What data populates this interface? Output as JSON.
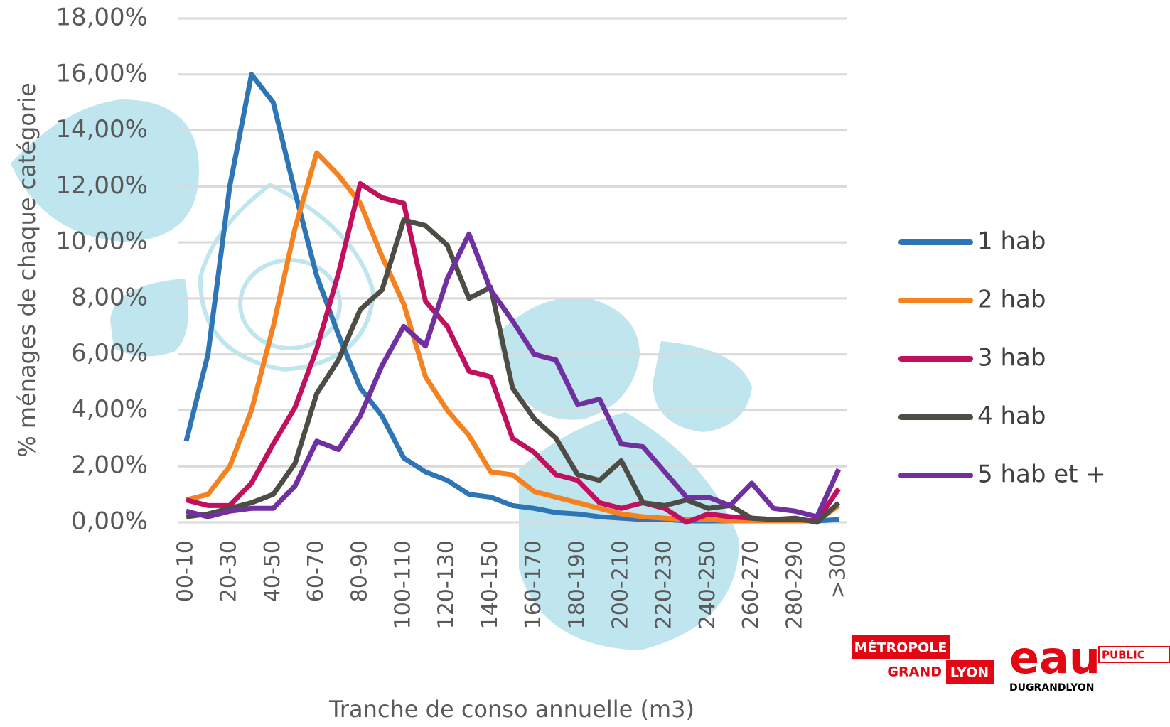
{
  "chart_data": {
    "type": "line",
    "y_axis_label": "% ménages de chaque catégorie",
    "x_axis_label": "Tranche de conso annuelle (m3)",
    "categories": [
      "00-10",
      null,
      "20-30",
      null,
      "40-50",
      null,
      "60-70",
      null,
      "80-90",
      null,
      "100-110",
      null,
      "120-130",
      null,
      "140-150",
      null,
      "160-170",
      null,
      "180-190",
      null,
      "200-210",
      null,
      "220-230",
      null,
      "240-250",
      null,
      "260-270",
      null,
      "280-290",
      null,
      ">300"
    ],
    "ylim": [
      0,
      18
    ],
    "yticks": [
      {
        "value": 0,
        "label": "0,00%"
      },
      {
        "value": 2,
        "label": "2,00%"
      },
      {
        "value": 4,
        "label": "4,00%"
      },
      {
        "value": 6,
        "label": "6,00%"
      },
      {
        "value": 8,
        "label": "8,00%"
      },
      {
        "value": 10,
        "label": "10,00%"
      },
      {
        "value": 12,
        "label": "12,00%"
      },
      {
        "value": 14,
        "label": "14,00%"
      },
      {
        "value": 16,
        "label": "16,00%"
      },
      {
        "value": 18,
        "label": "18,00%"
      }
    ],
    "grid": true,
    "legend": "right",
    "series": [
      {
        "name": "1 hab",
        "color": "#2e75b6",
        "values": [
          2.9,
          6.0,
          12.0,
          16.0,
          15.0,
          11.8,
          8.8,
          6.7,
          4.8,
          3.8,
          2.3,
          1.8,
          1.5,
          1.0,
          0.9,
          0.6,
          0.5,
          0.35,
          0.3,
          0.2,
          0.15,
          0.1,
          0.1,
          0.05,
          0.05,
          0.05,
          0.05,
          0.05,
          0.05,
          0.05,
          0.1
        ]
      },
      {
        "name": "2 hab",
        "color": "#f58220",
        "values": [
          0.8,
          1.0,
          2.0,
          4.0,
          7.0,
          10.5,
          13.2,
          12.4,
          11.4,
          9.5,
          7.8,
          5.2,
          4.0,
          3.1,
          1.8,
          1.7,
          1.1,
          0.9,
          0.7,
          0.5,
          0.3,
          0.2,
          0.15,
          0.1,
          0.1,
          0.05,
          0.05,
          0.05,
          0.05,
          0.05,
          0.6
        ]
      },
      {
        "name": "3 hab",
        "color": "#c0105e",
        "values": [
          0.8,
          0.6,
          0.6,
          1.4,
          2.8,
          4.1,
          6.2,
          8.9,
          12.1,
          11.6,
          11.4,
          7.9,
          7.0,
          5.4,
          5.2,
          3.0,
          2.5,
          1.7,
          1.5,
          0.7,
          0.5,
          0.7,
          0.5,
          0.0,
          0.3,
          0.2,
          0.15,
          0.1,
          0.1,
          0.05,
          1.2
        ]
      },
      {
        "name": "4 hab",
        "color": "#4d4d45",
        "values": [
          0.2,
          0.3,
          0.5,
          0.7,
          1.0,
          2.1,
          4.6,
          5.8,
          7.6,
          8.3,
          10.8,
          10.6,
          9.9,
          8.0,
          8.4,
          4.8,
          3.7,
          3.0,
          1.7,
          1.5,
          2.2,
          0.7,
          0.6,
          0.8,
          0.5,
          0.6,
          0.15,
          0.1,
          0.15,
          0.0,
          0.7
        ]
      },
      {
        "name": "5 hab et +",
        "color": "#7030a0",
        "values": [
          0.4,
          0.2,
          0.4,
          0.5,
          0.5,
          1.3,
          2.9,
          2.6,
          3.8,
          5.6,
          7.0,
          6.3,
          8.7,
          10.3,
          8.3,
          7.2,
          6.0,
          5.8,
          4.2,
          4.4,
          2.8,
          2.7,
          1.8,
          0.9,
          0.9,
          0.6,
          1.4,
          0.5,
          0.4,
          0.2,
          1.9
        ]
      }
    ]
  },
  "logos": {
    "metropole": "MÉTROPOLE",
    "grand": "GRAND",
    "lyon": "LYON",
    "eau": "eau",
    "public": "PUBLIC",
    "dugrandlyon": "DUGRANDLYON"
  }
}
